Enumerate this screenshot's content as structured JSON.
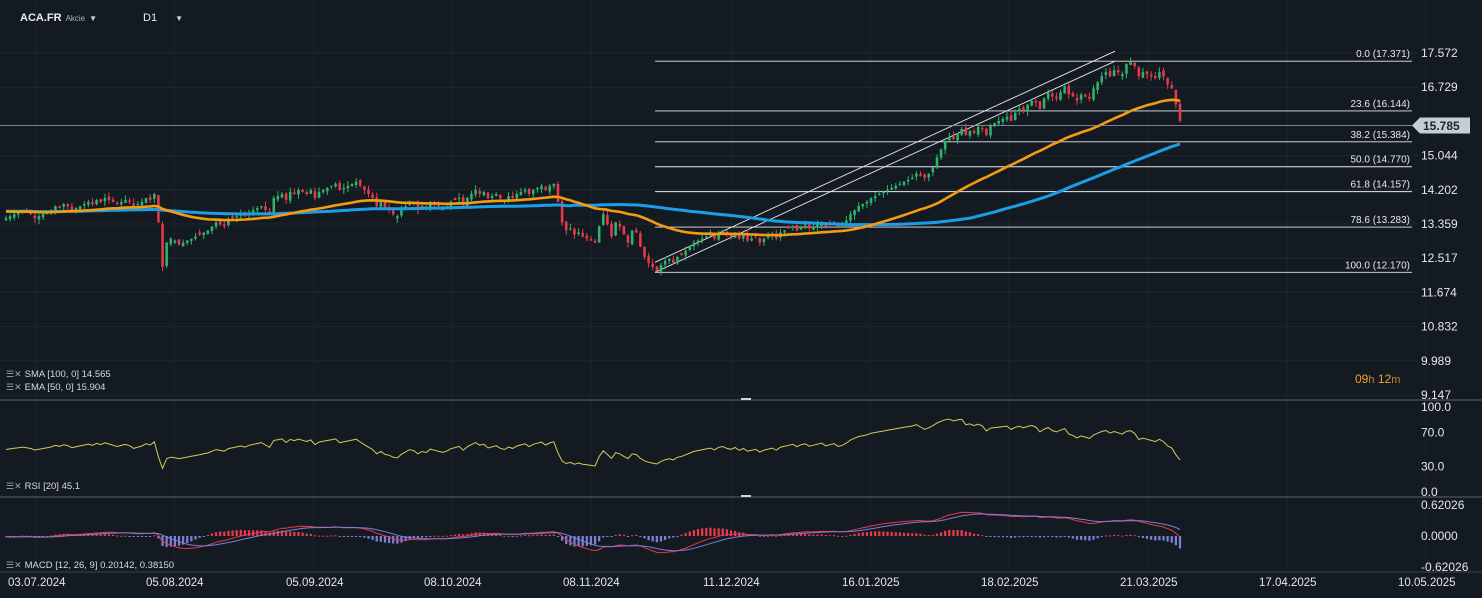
{
  "header": {
    "symbol": "ACA.FR",
    "type": "Akcie",
    "timeframe": "D1"
  },
  "indicators": {
    "sma": "SMA [100,  0]  14.565",
    "ema": "EMA [50,  0]  15.904",
    "rsi": "RSI [20]  45.1",
    "macd": "MACD [12,  26,  9]  0.20142,  0.38150"
  },
  "timer": {
    "hours": "09",
    "h": "h",
    "minutes": "12",
    "m": "m"
  },
  "colors": {
    "background": "#141a21",
    "bull": "#2fb56b",
    "bear": "#e8394c",
    "sma": "#1c9ee6",
    "ema": "#f39c12",
    "rsi": "#d4cc5a",
    "macd_line": "#e8394c",
    "signal_line": "#7b7fd6",
    "price_label": "#c5ced6"
  },
  "chart_data": [
    {
      "type": "candlestick",
      "price_ticks": [
        "17.572",
        "16.729",
        "15.044",
        "14.202",
        "13.359",
        "12.517",
        "11.674",
        "10.832",
        "9.989",
        "9.147"
      ],
      "ylim": [
        9.147,
        17.572
      ],
      "current_price": "15.785",
      "x_labels": [
        "03.07.2024",
        "05.08.2024",
        "05.09.2024",
        "08.10.2024",
        "08.11.2024",
        "11.12.2024",
        "16.01.2025",
        "18.02.2025",
        "21.03.2025",
        "17.04.2025",
        "10.05.2025"
      ],
      "fibonacci": {
        "high": 17.371,
        "low": 12.17,
        "levels": [
          {
            "label": "0.0 (17.371)",
            "value": 17.371
          },
          {
            "label": "23.6 (16.144)",
            "value": 16.144
          },
          {
            "label": "38.2 (15.384)",
            "value": 15.384
          },
          {
            "label": "50.0 (14.770)",
            "value": 14.77
          },
          {
            "label": "61.8 (14.157)",
            "value": 14.157
          },
          {
            "label": "78.6 (13.283)",
            "value": 13.283
          },
          {
            "label": "100.0 (12.170)",
            "value": 12.17
          }
        ]
      },
      "trend_channel": {
        "start": 12.17,
        "end": 17.371
      },
      "closes": [
        13.5,
        13.55,
        13.6,
        13.65,
        13.7,
        13.65,
        13.6,
        13.5,
        13.55,
        13.6,
        13.65,
        13.7,
        13.8,
        13.75,
        13.85,
        13.8,
        13.7,
        13.75,
        13.8,
        13.85,
        13.9,
        13.85,
        13.95,
        13.9,
        14.0,
        13.95,
        13.9,
        13.85,
        13.9,
        13.95,
        13.9,
        13.8,
        13.85,
        13.9,
        14.0,
        13.95,
        14.1,
        13.4,
        12.3,
        12.9,
        13.0,
        12.95,
        12.85,
        12.9,
        12.95,
        13.0,
        13.05,
        13.1,
        13.15,
        13.2,
        13.3,
        13.4,
        13.35,
        13.3,
        13.45,
        13.5,
        13.55,
        13.6,
        13.55,
        13.65,
        13.7,
        13.75,
        13.8,
        13.7,
        13.6,
        14.0,
        14.05,
        14.1,
        13.95,
        14.15,
        14.1,
        14.2,
        14.15,
        14.1,
        14.2,
        14.0,
        14.15,
        14.2,
        14.25,
        14.3,
        14.35,
        14.2,
        14.25,
        14.3,
        14.35,
        14.4,
        14.3,
        14.2,
        14.1,
        14.0,
        13.8,
        13.9,
        13.75,
        13.7,
        13.6,
        13.55,
        13.7,
        13.8,
        13.9,
        13.85,
        13.7,
        13.8,
        13.75,
        13.9,
        13.85,
        13.8,
        13.75,
        13.8,
        13.9,
        13.95,
        14.0,
        13.85,
        14.0,
        14.1,
        14.2,
        14.1,
        14.15,
        14.0,
        14.05,
        14.1,
        14.0,
        13.95,
        14.05,
        14.0,
        14.1,
        14.15,
        14.2,
        14.1,
        14.2,
        14.25,
        14.3,
        14.2,
        14.3,
        14.35,
        13.9,
        13.4,
        13.2,
        13.25,
        13.1,
        13.15,
        13.05,
        13.0,
        12.95,
        12.9,
        13.3,
        13.6,
        13.35,
        13.05,
        13.4,
        13.3,
        13.1,
        12.9,
        13.2,
        13.15,
        12.8,
        12.55,
        12.4,
        12.3,
        12.2,
        12.35,
        12.45,
        12.5,
        12.4,
        12.55,
        12.6,
        12.7,
        12.8,
        12.9,
        12.95,
        13.0,
        13.05,
        13.1,
        13.0,
        13.15,
        13.2,
        13.1,
        13.05,
        13.15,
        13.0,
        13.1,
        12.95,
        13.0,
        13.05,
        12.9,
        13.0,
        13.05,
        13.1,
        13.0,
        13.15,
        13.2,
        13.25,
        13.3,
        13.2,
        13.3,
        13.35,
        13.25,
        13.3,
        13.35,
        13.4,
        13.3,
        13.35,
        13.4,
        13.3,
        13.35,
        13.45,
        13.6,
        13.7,
        13.8,
        13.85,
        13.9,
        14.0,
        14.05,
        14.1,
        14.15,
        14.2,
        14.25,
        14.3,
        14.35,
        14.4,
        14.45,
        14.5,
        14.6,
        14.55,
        14.5,
        14.6,
        14.75,
        15.0,
        15.2,
        15.4,
        15.5,
        15.45,
        15.6,
        15.7,
        15.55,
        15.65,
        15.6,
        15.75,
        15.7,
        15.55,
        15.8,
        15.85,
        15.9,
        15.95,
        16.0,
        15.9,
        16.1,
        16.2,
        16.15,
        16.3,
        16.4,
        16.35,
        16.2,
        16.45,
        16.6,
        16.5,
        16.45,
        16.6,
        16.75,
        16.55,
        16.5,
        16.4,
        16.55,
        16.5,
        16.45,
        16.7,
        16.85,
        17.0,
        17.1,
        17.0,
        17.15,
        17.1,
        17.05,
        17.3,
        17.35,
        17.25,
        17.0,
        17.1,
        17.05,
        17.0,
        16.95,
        17.1,
        17.0,
        16.8,
        16.7,
        16.3,
        15.9
      ]
    },
    {
      "type": "line",
      "title": "RSI",
      "ylim": [
        0,
        100
      ],
      "ticks": [
        "100.0",
        "70.0",
        "30.0",
        "0.0"
      ]
    },
    {
      "type": "bar",
      "title": "MACD",
      "ylim": [
        -0.62026,
        0.62026
      ],
      "ticks": [
        "0.62026",
        "0.0000",
        "-0.62026"
      ]
    }
  ]
}
